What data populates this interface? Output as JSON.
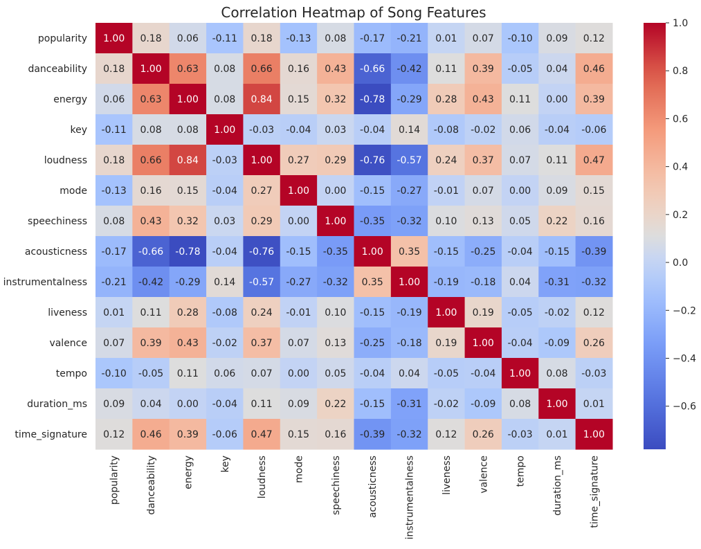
{
  "chart_data": {
    "type": "heatmap",
    "title": "Correlation Heatmap of Song Features",
    "colormap": "coolwarm",
    "annot_format": "0.00",
    "labels": [
      "popularity",
      "danceability",
      "energy",
      "key",
      "loudness",
      "mode",
      "speechiness",
      "acousticness",
      "instrumentalness",
      "liveness",
      "valence",
      "tempo",
      "duration_ms",
      "time_signature"
    ],
    "values": [
      [
        1.0,
        0.18,
        0.06,
        -0.11,
        0.18,
        -0.13,
        0.08,
        -0.17,
        -0.21,
        0.01,
        0.07,
        -0.1,
        0.09,
        0.12
      ],
      [
        0.18,
        1.0,
        0.63,
        0.08,
        0.66,
        0.16,
        0.43,
        -0.66,
        -0.42,
        0.11,
        0.39,
        -0.05,
        0.04,
        0.46
      ],
      [
        0.06,
        0.63,
        1.0,
        0.08,
        0.84,
        0.15,
        0.32,
        -0.78,
        -0.29,
        0.28,
        0.43,
        0.11,
        0.0,
        0.39
      ],
      [
        -0.11,
        0.08,
        0.08,
        1.0,
        -0.03,
        -0.04,
        0.03,
        -0.04,
        0.14,
        -0.08,
        -0.02,
        0.06,
        -0.04,
        -0.06
      ],
      [
        0.18,
        0.66,
        0.84,
        -0.03,
        1.0,
        0.27,
        0.29,
        -0.76,
        -0.57,
        0.24,
        0.37,
        0.07,
        0.11,
        0.47
      ],
      [
        -0.13,
        0.16,
        0.15,
        -0.04,
        0.27,
        1.0,
        -0.0,
        -0.15,
        -0.27,
        -0.01,
        0.07,
        -0.0,
        0.09,
        0.15
      ],
      [
        0.08,
        0.43,
        0.32,
        0.03,
        0.29,
        -0.0,
        1.0,
        -0.35,
        -0.32,
        0.1,
        0.13,
        0.05,
        0.22,
        0.16
      ],
      [
        -0.17,
        -0.66,
        -0.78,
        -0.04,
        -0.76,
        -0.15,
        -0.35,
        1.0,
        0.35,
        -0.15,
        -0.25,
        -0.04,
        -0.15,
        -0.39
      ],
      [
        -0.21,
        -0.42,
        -0.29,
        0.14,
        -0.57,
        -0.27,
        -0.32,
        0.35,
        1.0,
        -0.19,
        -0.18,
        0.04,
        -0.31,
        -0.32
      ],
      [
        0.01,
        0.11,
        0.28,
        -0.08,
        0.24,
        -0.01,
        0.1,
        -0.15,
        -0.19,
        1.0,
        0.19,
        -0.05,
        -0.02,
        0.12
      ],
      [
        0.07,
        0.39,
        0.43,
        -0.02,
        0.37,
        0.07,
        0.13,
        -0.25,
        -0.18,
        0.19,
        1.0,
        -0.04,
        -0.09,
        0.26
      ],
      [
        -0.1,
        -0.05,
        0.11,
        0.06,
        0.07,
        -0.0,
        0.05,
        -0.04,
        0.04,
        -0.05,
        -0.04,
        1.0,
        0.08,
        -0.03
      ],
      [
        0.09,
        0.04,
        0.0,
        -0.04,
        0.11,
        0.09,
        0.22,
        -0.15,
        -0.31,
        -0.02,
        -0.09,
        0.08,
        1.0,
        0.01
      ],
      [
        0.12,
        0.46,
        0.39,
        -0.06,
        0.47,
        0.15,
        0.16,
        -0.39,
        -0.32,
        0.12,
        0.26,
        -0.03,
        0.01,
        1.0
      ]
    ],
    "vmin": -0.78,
    "vmax": 1.0,
    "colorbar_ticks": [
      "-0.6",
      "-0.4",
      "-0.2",
      "0.0",
      "0.2",
      "0.4",
      "0.6",
      "0.8",
      "1.0"
    ]
  }
}
